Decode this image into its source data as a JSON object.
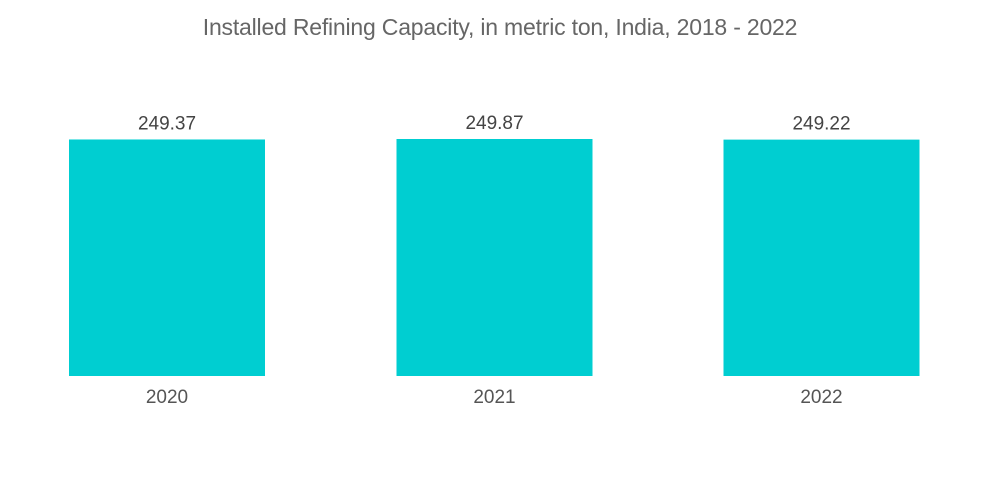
{
  "chart_data": {
    "type": "bar",
    "title": "Installed Refining Capacity, in metric ton, India, 2018 - 2022",
    "categories": [
      "2020",
      "2021",
      "2022"
    ],
    "values": [
      249.37,
      249.87,
      249.22
    ],
    "data_labels": [
      "249.37",
      "249.87",
      "249.22"
    ],
    "xlabel": "",
    "ylabel": "",
    "ylim": [
      0,
      249.87
    ],
    "grid": false,
    "legend": "none",
    "bar_color": "#00CED1"
  }
}
